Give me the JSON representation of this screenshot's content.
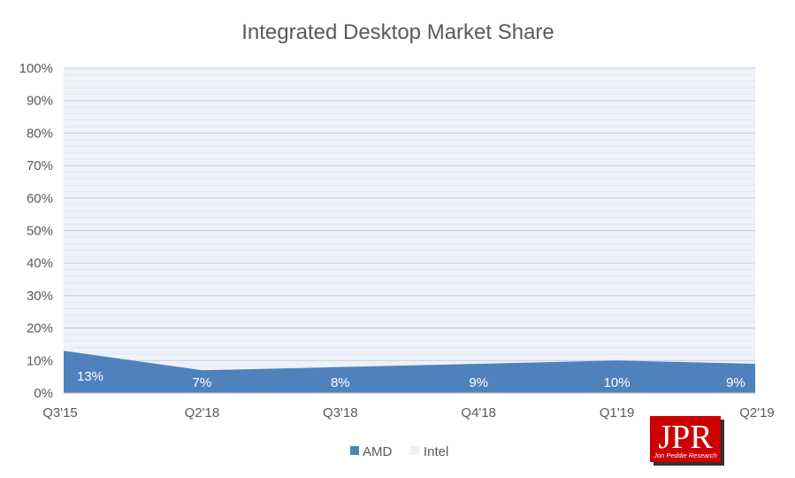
{
  "chart_data": {
    "type": "area",
    "stacked": true,
    "percent": true,
    "title": "Integrated Desktop Market Share",
    "categories": [
      "Q3'15",
      "Q2'18",
      "Q3'18",
      "Q4'18",
      "Q1'19",
      "Q2'19"
    ],
    "series": [
      {
        "name": "AMD",
        "values": [
          13,
          7,
          8,
          9,
          10,
          9
        ],
        "labels": [
          "13%",
          "7%",
          "8%",
          "9%",
          "10%",
          "9%"
        ],
        "color": "#4f81bd"
      },
      {
        "name": "Intel",
        "values": [
          87,
          93,
          92,
          91,
          90,
          91
        ],
        "color": "#eef2fa"
      }
    ],
    "ylim": [
      0,
      100
    ],
    "yticks": [
      "0%",
      "10%",
      "20%",
      "30%",
      "40%",
      "50%",
      "60%",
      "70%",
      "80%",
      "90%",
      "100%"
    ],
    "grid": true,
    "legend": "bottom-center"
  },
  "logo": {
    "mark": "JPR",
    "caption": "Jon Peddie Research",
    "color": "#cc0000"
  }
}
